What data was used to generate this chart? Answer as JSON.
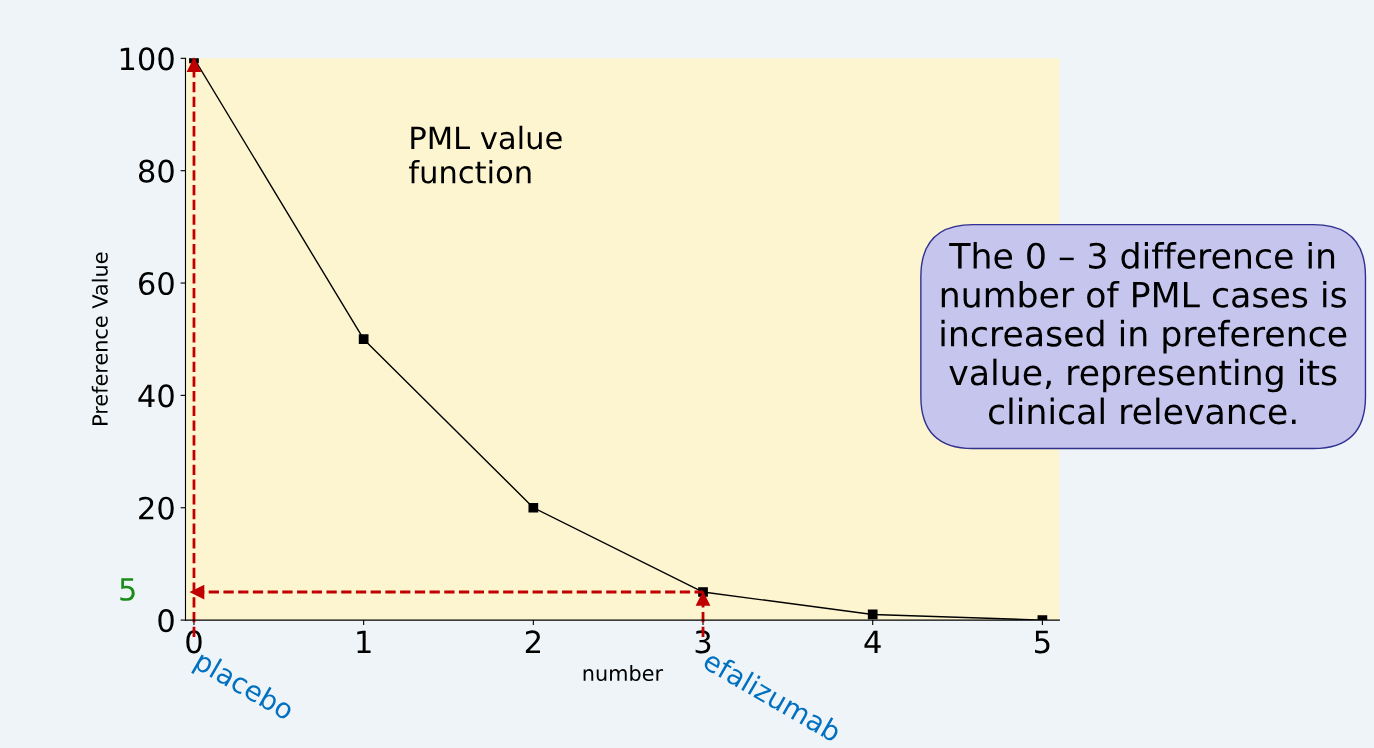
{
  "chart_data": {
    "type": "line",
    "x": [
      0,
      1,
      2,
      3,
      4,
      5
    ],
    "series": [
      {
        "color": "#000000",
        "values": [
          100,
          50,
          20,
          5,
          1,
          0
        ]
      }
    ],
    "xlabel": "number",
    "ylabel": "Preference Value",
    "xlim": [
      -0.05,
      5.1
    ],
    "ylim": [
      0,
      100
    ],
    "xticks": [
      0,
      1,
      2,
      3,
      4,
      5
    ],
    "yticks": [
      0,
      20,
      40,
      60,
      80,
      100
    ],
    "marker": "square",
    "line_style": "solid",
    "grid": false,
    "ref_lines": [
      {
        "axis": "y",
        "value": 5,
        "label": "5",
        "color": "#c00000",
        "line_style": "dashed"
      },
      {
        "axis": "x",
        "value": 0,
        "label": "placebo",
        "color": "#c00000",
        "line_style": "dashed"
      },
      {
        "axis": "x",
        "value": 3,
        "label": "efalizumab",
        "color": "#c00000",
        "line_style": "dashed"
      }
    ],
    "annotations": [
      "PML value function",
      "The 0 – 3 difference in number of PML cases is increased in preference value, representing its clinical relevance."
    ]
  }
}
